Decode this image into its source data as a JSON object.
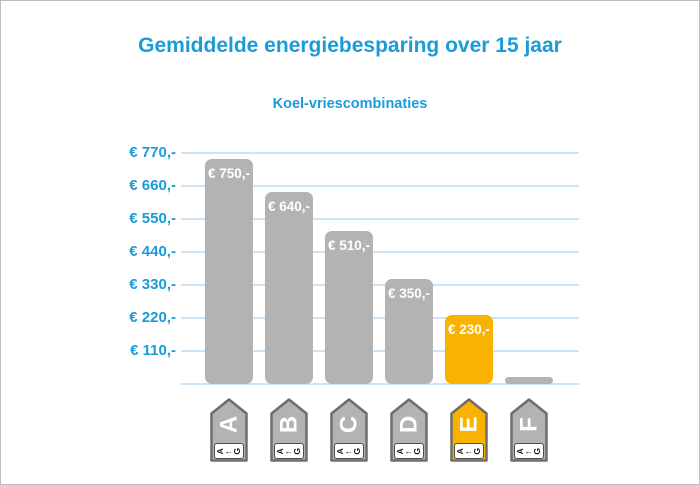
{
  "header": {
    "title": "Gemiddelde energiebesparing over 15 jaar",
    "subtitle": "Koel-vriescombinaties"
  },
  "colors": {
    "accent_blue": "#1b9bd8",
    "gridline_blue": "#cbe5f7",
    "bar_gray": "#b3b3b3",
    "highlight_orange": "#f9b200",
    "tag_border_gray": "#6e6e6e",
    "bar_label_white": "#ffffff",
    "scale_text_dark": "#1a1a1a",
    "frame_border_gray": "#bdbdbd"
  },
  "chart_data": {
    "type": "bar",
    "title": "Gemiddelde energiebesparing over 15 jaar",
    "subtitle": "Koel-vriescombinaties",
    "categories": [
      "A",
      "B",
      "C",
      "D",
      "E",
      "F"
    ],
    "values": [
      750,
      640,
      510,
      350,
      230,
      20
    ],
    "bar_labels": [
      "€ 750,-",
      "€ 640,-",
      "€ 510,-",
      "€ 350,-",
      "€ 230,-",
      ""
    ],
    "highlighted_category": "E",
    "ylim": [
      0,
      770
    ],
    "grid": "horizontal",
    "legend": "none",
    "y_ticks": [
      {
        "value": 770,
        "label": "€ 770,-"
      },
      {
        "value": 660,
        "label": "€ 660,-"
      },
      {
        "value": 550,
        "label": "€ 550,-"
      },
      {
        "value": 440,
        "label": "€ 440,-"
      },
      {
        "value": 330,
        "label": "€ 330,-"
      },
      {
        "value": 220,
        "label": "€ 220,-"
      },
      {
        "value": 110,
        "label": "€ 110,-"
      }
    ],
    "energy_labels": [
      {
        "class": "A",
        "scale_left": "A",
        "scale_right": "G",
        "highlighted": false
      },
      {
        "class": "B",
        "scale_left": "A",
        "scale_right": "G",
        "highlighted": false
      },
      {
        "class": "C",
        "scale_left": "A",
        "scale_right": "G",
        "highlighted": false
      },
      {
        "class": "D",
        "scale_left": "A",
        "scale_right": "G",
        "highlighted": false
      },
      {
        "class": "E",
        "scale_left": "A",
        "scale_right": "G",
        "highlighted": true
      },
      {
        "class": "F",
        "scale_left": "A",
        "scale_right": "G",
        "highlighted": false
      }
    ],
    "scale_arrow": "←"
  }
}
